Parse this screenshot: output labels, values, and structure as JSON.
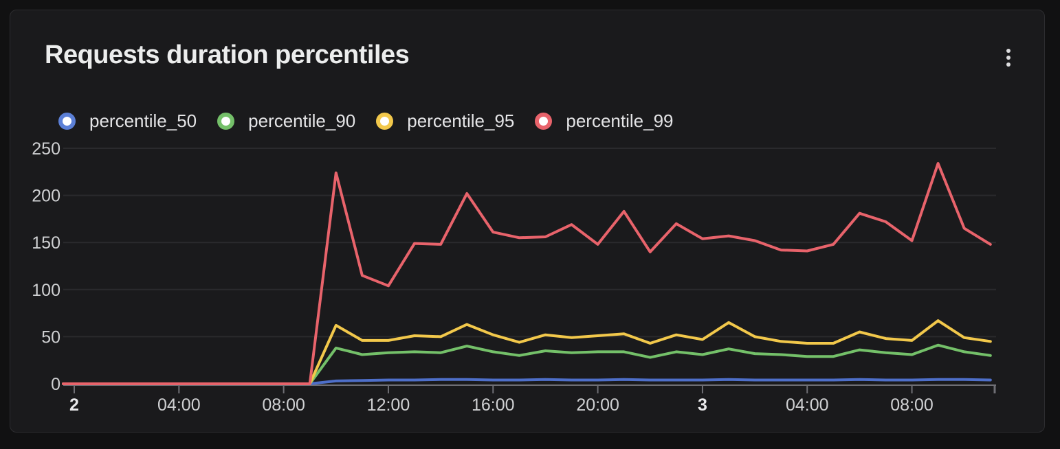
{
  "panel": {
    "title": "Requests duration percentiles",
    "menu_icon": "kebab-vertical-icon",
    "background_color": "#1a1a1c",
    "page_background_color": "#111112",
    "border_color": "#2d2d30"
  },
  "chart_data": {
    "type": "line",
    "title": "Requests duration percentiles",
    "legend_position": "top",
    "grid": "horizontal",
    "x_axis": {
      "type": "time",
      "points_hourly_from": "day 2, 00:00",
      "ticks": [
        {
          "hour": 0,
          "label": "2",
          "bold": true
        },
        {
          "hour": 4,
          "label": "04:00",
          "bold": false
        },
        {
          "hour": 8,
          "label": "08:00",
          "bold": false
        },
        {
          "hour": 12,
          "label": "12:00",
          "bold": false
        },
        {
          "hour": 16,
          "label": "16:00",
          "bold": false
        },
        {
          "hour": 20,
          "label": "20:00",
          "bold": false
        },
        {
          "hour": 24,
          "label": "3",
          "bold": true
        },
        {
          "hour": 28,
          "label": "04:00",
          "bold": false
        },
        {
          "hour": 32,
          "label": "08:00",
          "bold": false
        }
      ]
    },
    "y_axis": {
      "min": 0,
      "max": 260,
      "ticks": [
        0,
        50,
        100,
        150,
        200,
        250
      ]
    },
    "series": [
      {
        "name": "percentile_50",
        "color": "#5b7fd6",
        "line_color": "#4e6fc9",
        "values": [
          0,
          0,
          0,
          0,
          0,
          0,
          0,
          0,
          0,
          0,
          3,
          3.5,
          4,
          4,
          4.5,
          4.5,
          4,
          4,
          4.5,
          4,
          4,
          4.5,
          4,
          4,
          4,
          4.5,
          4,
          4,
          4,
          4,
          4.5,
          4,
          4,
          4.5,
          4.5,
          4
        ]
      },
      {
        "name": "percentile_90",
        "color": "#74c069",
        "line_color": "#74c069",
        "values": [
          0,
          0,
          0,
          0,
          0,
          0,
          0,
          0,
          0,
          0,
          38,
          31,
          33,
          34,
          33,
          40,
          34,
          30,
          35,
          33,
          34,
          34,
          28,
          34,
          31,
          37,
          32,
          31,
          29,
          29,
          36,
          33,
          31,
          41,
          34,
          30
        ]
      },
      {
        "name": "percentile_95",
        "color": "#f2c84b",
        "line_color": "#f2c84b",
        "values": [
          0,
          0,
          0,
          0,
          0,
          0,
          0,
          0,
          0,
          0,
          62,
          46,
          46,
          51,
          50,
          63,
          52,
          44,
          52,
          49,
          51,
          53,
          43,
          52,
          47,
          65,
          50,
          45,
          43,
          43,
          55,
          48,
          46,
          67,
          49,
          45
        ]
      },
      {
        "name": "percentile_99",
        "color": "#e8636b",
        "line_color": "#e8636b",
        "values": [
          0,
          0,
          0,
          0,
          0,
          0,
          0,
          0,
          0,
          0,
          224,
          115,
          104,
          149,
          148,
          202,
          161,
          155,
          156,
          169,
          148,
          183,
          140,
          170,
          154,
          157,
          152,
          142,
          141,
          148,
          181,
          172,
          152,
          234,
          165,
          148
        ]
      }
    ],
    "style": {
      "gridline_color": "#2a2a2d",
      "axis_line_color": "#6f6f75",
      "axis_label_color": "#cfd0d2",
      "day_label_color": "#e9e9eb"
    }
  }
}
